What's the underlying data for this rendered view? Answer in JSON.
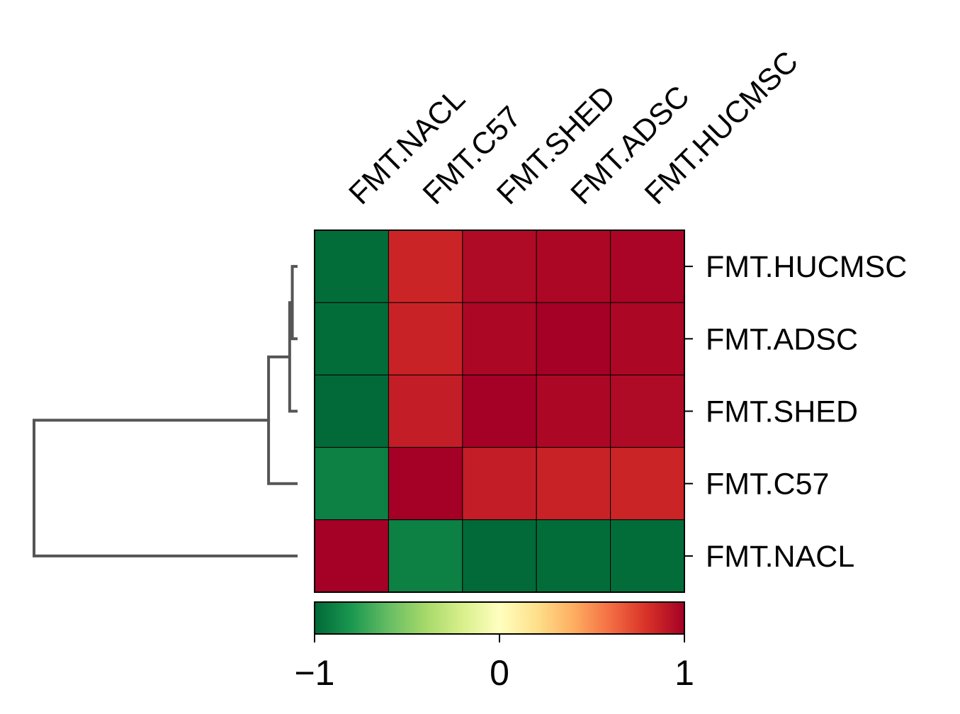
{
  "chart_data": {
    "type": "heatmap",
    "title": "",
    "columns": [
      "FMT.NACL",
      "FMT.C57",
      "FMT.SHED",
      "FMT.ADSC",
      "FMT.HUCMSC"
    ],
    "rows": [
      "FMT.HUCMSC",
      "FMT.ADSC",
      "FMT.SHED",
      "FMT.C57",
      "FMT.NACL"
    ],
    "values": [
      [
        -0.98,
        0.85,
        0.96,
        0.97,
        0.98
      ],
      [
        -0.98,
        0.86,
        0.97,
        1.0,
        0.97
      ],
      [
        -0.99,
        0.88,
        1.0,
        0.97,
        0.96
      ],
      [
        -0.9,
        1.0,
        0.88,
        0.86,
        0.85
      ],
      [
        1.0,
        -0.9,
        -0.99,
        -0.98,
        -0.98
      ]
    ],
    "colorbar": {
      "min": -1,
      "max": 1,
      "ticks": [
        -1,
        0,
        1
      ],
      "tick_labels": [
        "−1",
        "0",
        "1"
      ],
      "colormap": "RdYlGn_r",
      "stops": [
        "#006837",
        "#1a9850",
        "#66bd63",
        "#a6d96a",
        "#d9ef8b",
        "#ffffbf",
        "#fee08b",
        "#fdae61",
        "#f46d43",
        "#d73027",
        "#a50026"
      ]
    },
    "dendrogram": {
      "side": "left",
      "line_color": "#555555",
      "merges": [
        {
          "left": "FMT.HUCMSC",
          "right": "FMT.ADSC",
          "height": 0.02
        },
        {
          "left": "FMT.HUCMSC+FMT.ADSC",
          "right": "FMT.SHED",
          "height": 0.03
        },
        {
          "left": "FMT.HUCMSC+FMT.ADSC+FMT.SHED",
          "right": "FMT.C57",
          "height": 0.11
        },
        {
          "left": "all-but-NACL",
          "right": "FMT.NACL",
          "height": 1.0
        }
      ]
    }
  }
}
